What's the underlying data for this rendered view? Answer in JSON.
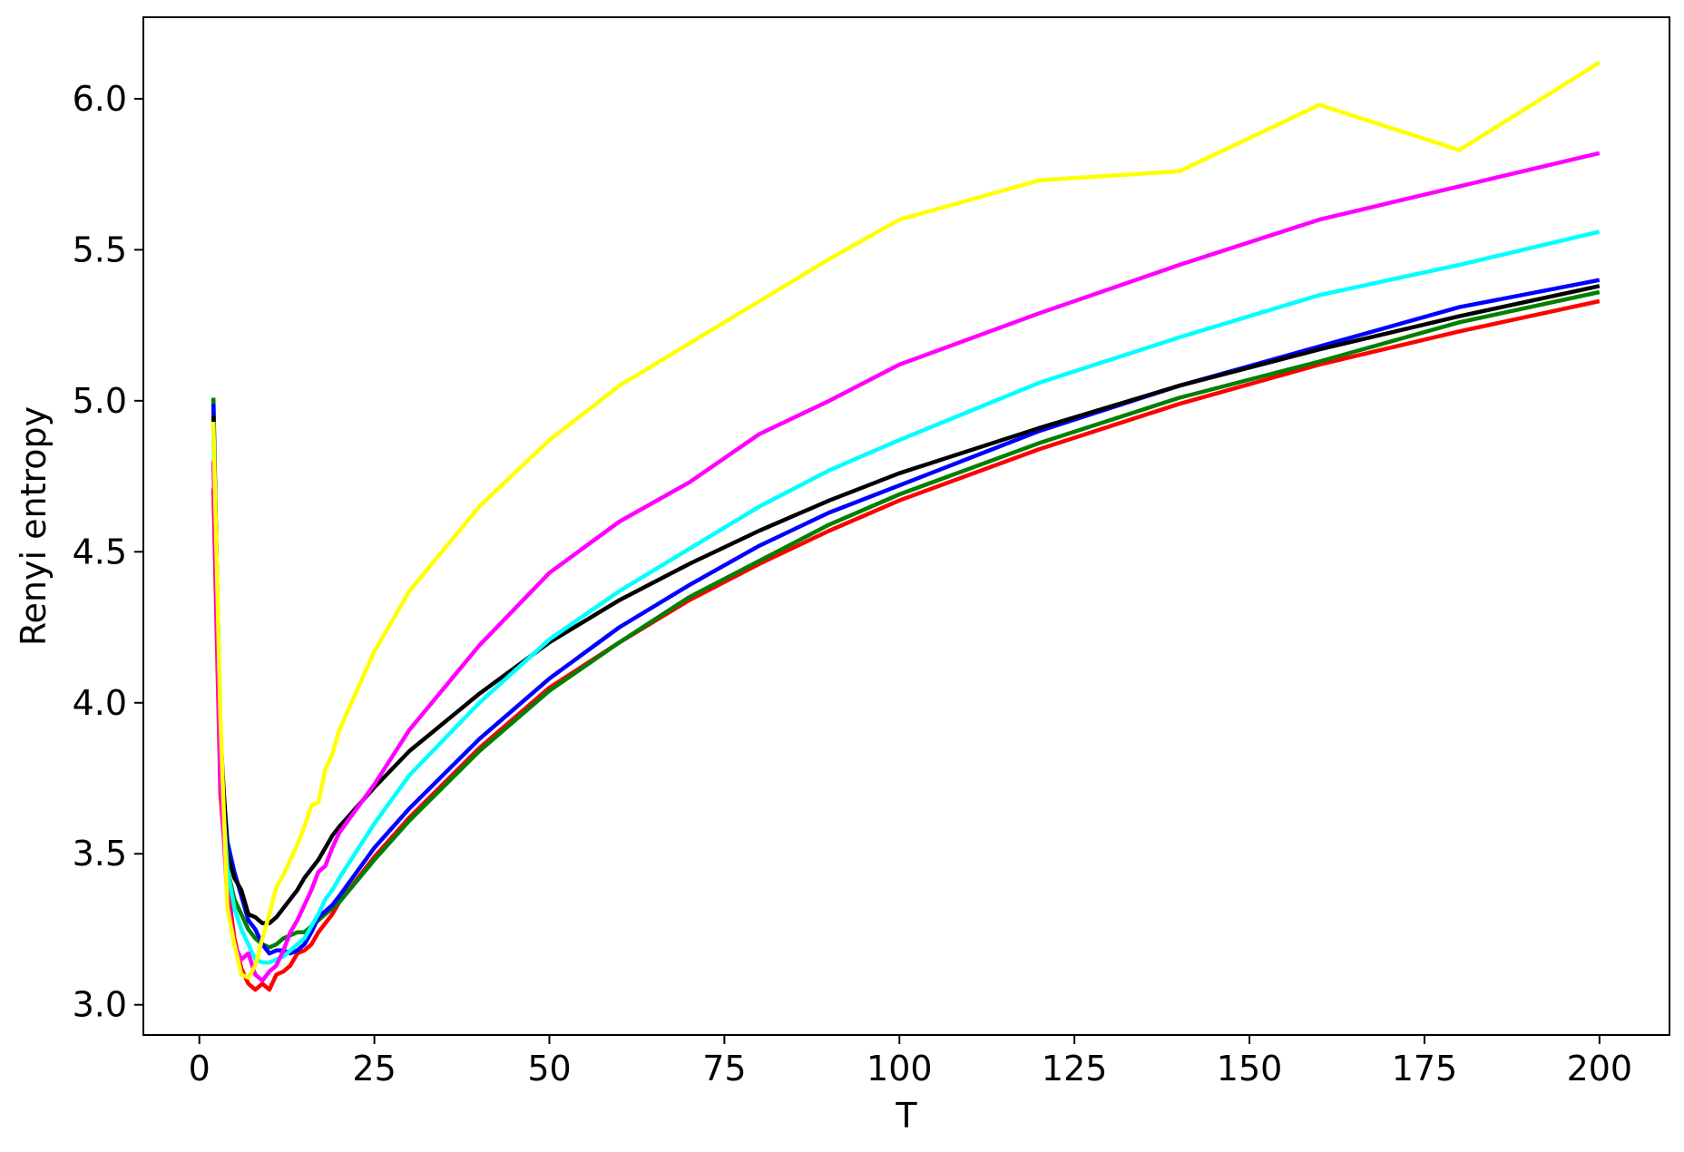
{
  "chart_data": {
    "type": "line",
    "title": "",
    "xlabel": "T",
    "ylabel": "Renyi entropy",
    "xlim": [
      -8,
      210
    ],
    "ylim": [
      2.9,
      6.27
    ],
    "xticks": [
      "0",
      "25",
      "50",
      "75",
      "100",
      "125",
      "150",
      "175",
      "200"
    ],
    "yticks": [
      "3.0",
      "3.5",
      "4.0",
      "4.5",
      "5.0",
      "5.5",
      "6.0"
    ],
    "grid": false,
    "legend": "none",
    "series": [
      {
        "color": "#ff0000",
        "points": [
          [
            2,
            4.71
          ],
          [
            3,
            3.7
          ],
          [
            4,
            3.4
          ],
          [
            5,
            3.22
          ],
          [
            6,
            3.12
          ],
          [
            7,
            3.07
          ],
          [
            8,
            3.05
          ],
          [
            9,
            3.07
          ],
          [
            10,
            3.05
          ],
          [
            11,
            3.1
          ],
          [
            12,
            3.11
          ],
          [
            13,
            3.13
          ],
          [
            14,
            3.17
          ],
          [
            15,
            3.18
          ],
          [
            16,
            3.2
          ],
          [
            17,
            3.24
          ],
          [
            18,
            3.27
          ],
          [
            19,
            3.3
          ],
          [
            20,
            3.34
          ],
          [
            25,
            3.49
          ],
          [
            30,
            3.62
          ],
          [
            40,
            3.85
          ],
          [
            50,
            4.05
          ],
          [
            60,
            4.2
          ],
          [
            70,
            4.34
          ],
          [
            80,
            4.46
          ],
          [
            90,
            4.57
          ],
          [
            100,
            4.67
          ],
          [
            120,
            4.84
          ],
          [
            140,
            4.99
          ],
          [
            160,
            5.12
          ],
          [
            180,
            5.23
          ],
          [
            200,
            5.33
          ]
        ]
      },
      {
        "color": "#008000",
        "points": [
          [
            2,
            5.01
          ],
          [
            3,
            3.85
          ],
          [
            4,
            3.45
          ],
          [
            5,
            3.35
          ],
          [
            6,
            3.3
          ],
          [
            7,
            3.25
          ],
          [
            8,
            3.22
          ],
          [
            9,
            3.2
          ],
          [
            10,
            3.19
          ],
          [
            11,
            3.2
          ],
          [
            12,
            3.22
          ],
          [
            13,
            3.23
          ],
          [
            14,
            3.24
          ],
          [
            15,
            3.24
          ],
          [
            16,
            3.26
          ],
          [
            17,
            3.28
          ],
          [
            18,
            3.3
          ],
          [
            19,
            3.32
          ],
          [
            20,
            3.34
          ],
          [
            25,
            3.48
          ],
          [
            30,
            3.61
          ],
          [
            40,
            3.84
          ],
          [
            50,
            4.04
          ],
          [
            60,
            4.2
          ],
          [
            70,
            4.35
          ],
          [
            80,
            4.47
          ],
          [
            90,
            4.59
          ],
          [
            100,
            4.69
          ],
          [
            120,
            4.86
          ],
          [
            140,
            5.01
          ],
          [
            160,
            5.13
          ],
          [
            180,
            5.26
          ],
          [
            200,
            5.36
          ]
        ]
      },
      {
        "color": "#0000ff",
        "points": [
          [
            2,
            4.99
          ],
          [
            3,
            3.85
          ],
          [
            4,
            3.54
          ],
          [
            5,
            3.44
          ],
          [
            6,
            3.36
          ],
          [
            7,
            3.28
          ],
          [
            8,
            3.25
          ],
          [
            9,
            3.2
          ],
          [
            10,
            3.17
          ],
          [
            11,
            3.18
          ],
          [
            12,
            3.18
          ],
          [
            13,
            3.17
          ],
          [
            14,
            3.18
          ],
          [
            15,
            3.2
          ],
          [
            16,
            3.24
          ],
          [
            17,
            3.29
          ],
          [
            18,
            3.31
          ],
          [
            19,
            3.33
          ],
          [
            20,
            3.36
          ],
          [
            25,
            3.52
          ],
          [
            30,
            3.65
          ],
          [
            40,
            3.88
          ],
          [
            50,
            4.08
          ],
          [
            60,
            4.25
          ],
          [
            70,
            4.39
          ],
          [
            80,
            4.52
          ],
          [
            90,
            4.63
          ],
          [
            100,
            4.72
          ],
          [
            120,
            4.9
          ],
          [
            140,
            5.05
          ],
          [
            160,
            5.18
          ],
          [
            180,
            5.31
          ],
          [
            200,
            5.4
          ]
        ]
      },
      {
        "color": "#000000",
        "points": [
          [
            2,
            4.95
          ],
          [
            3,
            3.9
          ],
          [
            4,
            3.5
          ],
          [
            5,
            3.42
          ],
          [
            6,
            3.38
          ],
          [
            7,
            3.3
          ],
          [
            8,
            3.29
          ],
          [
            9,
            3.27
          ],
          [
            10,
            3.27
          ],
          [
            11,
            3.29
          ],
          [
            12,
            3.32
          ],
          [
            13,
            3.35
          ],
          [
            14,
            3.38
          ],
          [
            15,
            3.42
          ],
          [
            16,
            3.45
          ],
          [
            17,
            3.48
          ],
          [
            18,
            3.52
          ],
          [
            19,
            3.56
          ],
          [
            20,
            3.59
          ],
          [
            25,
            3.72
          ],
          [
            30,
            3.84
          ],
          [
            40,
            4.03
          ],
          [
            50,
            4.2
          ],
          [
            60,
            4.34
          ],
          [
            70,
            4.46
          ],
          [
            80,
            4.57
          ],
          [
            90,
            4.67
          ],
          [
            100,
            4.76
          ],
          [
            120,
            4.91
          ],
          [
            140,
            5.05
          ],
          [
            160,
            5.17
          ],
          [
            180,
            5.28
          ],
          [
            200,
            5.38
          ]
        ]
      },
      {
        "color": "#00ffff",
        "points": [
          [
            2,
            4.88
          ],
          [
            3,
            3.8
          ],
          [
            4,
            3.45
          ],
          [
            5,
            3.32
          ],
          [
            6,
            3.25
          ],
          [
            7,
            3.2
          ],
          [
            8,
            3.15
          ],
          [
            9,
            3.14
          ],
          [
            10,
            3.14
          ],
          [
            11,
            3.15
          ],
          [
            12,
            3.16
          ],
          [
            13,
            3.18
          ],
          [
            14,
            3.2
          ],
          [
            15,
            3.22
          ],
          [
            16,
            3.26
          ],
          [
            17,
            3.3
          ],
          [
            18,
            3.35
          ],
          [
            19,
            3.38
          ],
          [
            20,
            3.42
          ],
          [
            25,
            3.6
          ],
          [
            30,
            3.76
          ],
          [
            40,
            4.0
          ],
          [
            50,
            4.21
          ],
          [
            60,
            4.37
          ],
          [
            70,
            4.51
          ],
          [
            80,
            4.65
          ],
          [
            90,
            4.77
          ],
          [
            100,
            4.87
          ],
          [
            120,
            5.06
          ],
          [
            140,
            5.21
          ],
          [
            160,
            5.35
          ],
          [
            180,
            5.45
          ],
          [
            200,
            5.56
          ]
        ]
      },
      {
        "color": "#ff00ff",
        "points": [
          [
            2,
            4.8
          ],
          [
            3,
            3.75
          ],
          [
            4,
            3.35
          ],
          [
            5,
            3.2
          ],
          [
            6,
            3.15
          ],
          [
            7,
            3.17
          ],
          [
            8,
            3.1
          ],
          [
            9,
            3.08
          ],
          [
            10,
            3.11
          ],
          [
            11,
            3.13
          ],
          [
            12,
            3.18
          ],
          [
            13,
            3.24
          ],
          [
            14,
            3.28
          ],
          [
            15,
            3.33
          ],
          [
            16,
            3.38
          ],
          [
            17,
            3.44
          ],
          [
            18,
            3.46
          ],
          [
            19,
            3.52
          ],
          [
            20,
            3.57
          ],
          [
            25,
            3.73
          ],
          [
            30,
            3.91
          ],
          [
            40,
            4.19
          ],
          [
            50,
            4.43
          ],
          [
            60,
            4.6
          ],
          [
            70,
            4.73
          ],
          [
            80,
            4.89
          ],
          [
            90,
            5.0
          ],
          [
            100,
            5.12
          ],
          [
            120,
            5.29
          ],
          [
            140,
            5.45
          ],
          [
            160,
            5.6
          ],
          [
            180,
            5.71
          ],
          [
            200,
            5.82
          ]
        ]
      },
      {
        "color": "#ffff00",
        "points": [
          [
            2,
            4.93
          ],
          [
            3,
            3.95
          ],
          [
            4,
            3.32
          ],
          [
            5,
            3.2
          ],
          [
            6,
            3.1
          ],
          [
            7,
            3.09
          ],
          [
            8,
            3.13
          ],
          [
            9,
            3.22
          ],
          [
            10,
            3.3
          ],
          [
            11,
            3.39
          ],
          [
            12,
            3.43
          ],
          [
            13,
            3.48
          ],
          [
            14,
            3.53
          ],
          [
            15,
            3.59
          ],
          [
            16,
            3.66
          ],
          [
            17,
            3.67
          ],
          [
            18,
            3.78
          ],
          [
            19,
            3.83
          ],
          [
            20,
            3.91
          ],
          [
            25,
            4.17
          ],
          [
            30,
            4.37
          ],
          [
            40,
            4.65
          ],
          [
            50,
            4.87
          ],
          [
            60,
            5.05
          ],
          [
            70,
            5.19
          ],
          [
            80,
            5.33
          ],
          [
            90,
            5.47
          ],
          [
            100,
            5.6
          ],
          [
            120,
            5.73
          ],
          [
            140,
            5.76
          ],
          [
            160,
            5.98
          ],
          [
            180,
            5.83
          ],
          [
            200,
            6.12
          ]
        ]
      }
    ]
  }
}
